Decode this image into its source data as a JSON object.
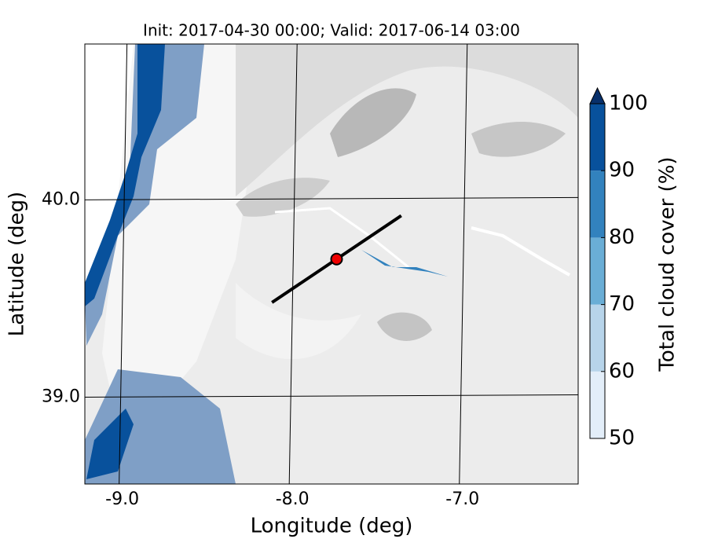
{
  "chart_data": {
    "type": "map",
    "title": "Init: 2017-04-30 00:00; Valid: 2017-06-14 03:00",
    "xlabel": "Longitude (deg)",
    "ylabel": "Latitude (deg)",
    "xlim": [
      -9.22,
      -6.32
    ],
    "ylim": [
      38.56,
      40.79
    ],
    "xticks": [
      {
        "value": -9,
        "label": "-9.0"
      },
      {
        "value": -8,
        "label": "-8.0"
      },
      {
        "value": -7,
        "label": "-7.0"
      }
    ],
    "yticks": [
      {
        "value": 39,
        "label": "39.0"
      },
      {
        "value": 40,
        "label": "40.0"
      }
    ],
    "grid": true,
    "cross_section": {
      "lon": [
        -8.12,
        -7.36
      ],
      "lat": [
        39.48,
        39.92
      ],
      "color": "#000000"
    },
    "marker": {
      "lon": -7.74,
      "lat": 39.7,
      "color": "#ee0000"
    },
    "colorbar": {
      "label": "Total cloud cover (%)",
      "clim": [
        50,
        100
      ],
      "ticks": [
        50,
        60,
        70,
        80,
        90,
        100
      ],
      "colors": [
        "#e3eef9",
        "#b7d4ea",
        "#6aaed6",
        "#3282be",
        "#08519c"
      ],
      "extend_color": "#08306b"
    }
  }
}
